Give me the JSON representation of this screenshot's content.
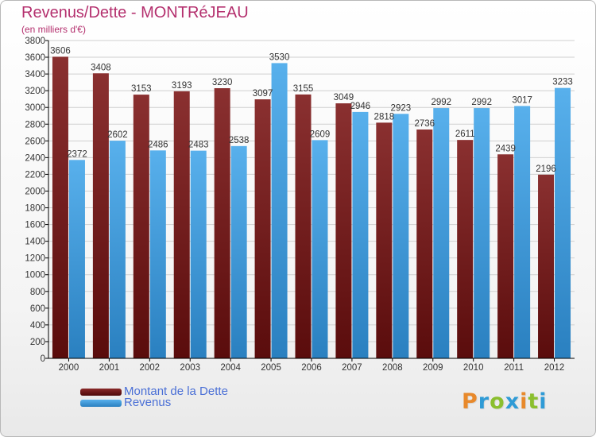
{
  "header": {
    "title": "Revenus/Dette - MONTRéJEAU",
    "subtitle": "(en milliers d'€)"
  },
  "brand": {
    "text": "Proxiti",
    "letter_colors": [
      "#e8892b",
      "#2f9bd6",
      "#8bbf2e",
      "#2f9bd6",
      "#e8892b",
      "#8bbf2e",
      "#2f9bd6"
    ]
  },
  "colors": {
    "debt": "#7a2424",
    "revenue": "#3d98d8",
    "axis": "#000000",
    "grid": "#d0d0d0",
    "text": "#333333"
  },
  "chart_data": {
    "type": "bar",
    "title": "Revenus/Dette - MONTRéJEAU",
    "subtitle": "(en milliers d'€)",
    "categories": [
      "2000",
      "2001",
      "2002",
      "2003",
      "2004",
      "2005",
      "2006",
      "2007",
      "2008",
      "2009",
      "2010",
      "2011",
      "2012"
    ],
    "series": [
      {
        "name": "Montant de la Dette",
        "values": [
          3606,
          3408,
          3153,
          3193,
          3230,
          3097,
          3155,
          3049,
          2818,
          2736,
          2611,
          2439,
          2196
        ]
      },
      {
        "name": "Revenus",
        "values": [
          2372,
          2602,
          2486,
          2483,
          2538,
          3530,
          2609,
          2946,
          2923,
          2992,
          2992,
          3017,
          3233
        ]
      }
    ],
    "ylim": [
      0,
      3800
    ],
    "yticks": [
      0,
      200,
      400,
      600,
      800,
      1000,
      1200,
      1400,
      1600,
      1800,
      2000,
      2200,
      2400,
      2600,
      2800,
      3000,
      3200,
      3400,
      3600,
      3800
    ],
    "grid": true,
    "legend": "bottom-left"
  }
}
